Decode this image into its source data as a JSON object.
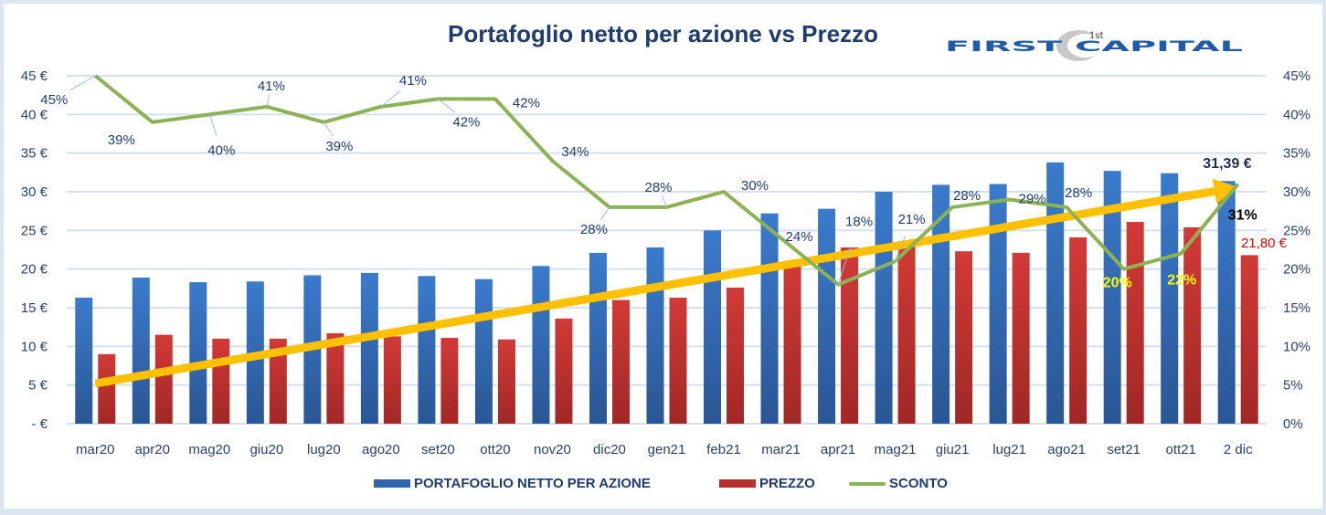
{
  "chart_data": {
    "type": "bar",
    "title": "Portafoglio netto per azione vs Prezzo",
    "categories": [
      "mar20",
      "apr20",
      "mag20",
      "giu20",
      "lug20",
      "ago20",
      "set20",
      "ott20",
      "nov20",
      "dic20",
      "gen21",
      "feb21",
      "mar21",
      "apr21",
      "mag21",
      "giu21",
      "lug21",
      "ago21",
      "set21",
      "ott21",
      "2 dic"
    ],
    "series": [
      {
        "name": "PORTAFOGLIO NETTO PER AZIONE",
        "type": "bar",
        "axis": "left",
        "color": "#3a78c8",
        "values": [
          16.3,
          18.9,
          18.3,
          18.4,
          19.2,
          19.5,
          19.1,
          18.7,
          20.4,
          22.1,
          22.8,
          25.0,
          27.2,
          27.8,
          30.0,
          30.9,
          31.0,
          33.8,
          32.7,
          32.4,
          31.39
        ]
      },
      {
        "name": "PREZZO",
        "type": "bar",
        "axis": "left",
        "color": "#c9342f",
        "values": [
          9.0,
          11.5,
          11.0,
          11.0,
          11.7,
          11.3,
          11.1,
          10.9,
          13.6,
          16.0,
          16.3,
          17.6,
          20.8,
          22.8,
          23.5,
          22.3,
          22.1,
          24.1,
          26.1,
          25.4,
          21.8
        ]
      },
      {
        "name": "SCONTO",
        "type": "line",
        "axis": "right",
        "color": "#8db255",
        "values": [
          45,
          39,
          40,
          41,
          39,
          41,
          42,
          42,
          34,
          28,
          28,
          30,
          24,
          18,
          21,
          28,
          29,
          28,
          20,
          22,
          31
        ],
        "labels": [
          "45%",
          "39%",
          "40%",
          "41%",
          "39%",
          "41%",
          "42%",
          "42%",
          "34%",
          "28%",
          "28%",
          "30%",
          "24%",
          "18%",
          "21%",
          "28%",
          "29%",
          "28%",
          "20%",
          "22%",
          "31%"
        ]
      }
    ],
    "y_left": {
      "ylim": [
        0,
        45
      ],
      "ticks": [
        "- €",
        "5 €",
        "10 €",
        "15 €",
        "20 €",
        "25 €",
        "30 €",
        "35 €",
        "40 €",
        "45 €"
      ]
    },
    "y_right": {
      "ylim": [
        0,
        45
      ],
      "ticks": [
        "0%",
        "5%",
        "10%",
        "15%",
        "20%",
        "25%",
        "30%",
        "35%",
        "40%",
        "45%"
      ]
    },
    "grid": true,
    "legend_position": "bottom",
    "annotations": {
      "last_nav": "31,39 €",
      "last_price": "21,80 €"
    },
    "trend_arrow_color": "#ffc000",
    "label_colors": {
      "default": "#1f3c6e",
      "highlight_yellow": "#ffff00",
      "last": "#000000",
      "price": "#e00000"
    }
  },
  "logo": {
    "text": "FIRST CAPITAL",
    "superscript": "1st"
  }
}
